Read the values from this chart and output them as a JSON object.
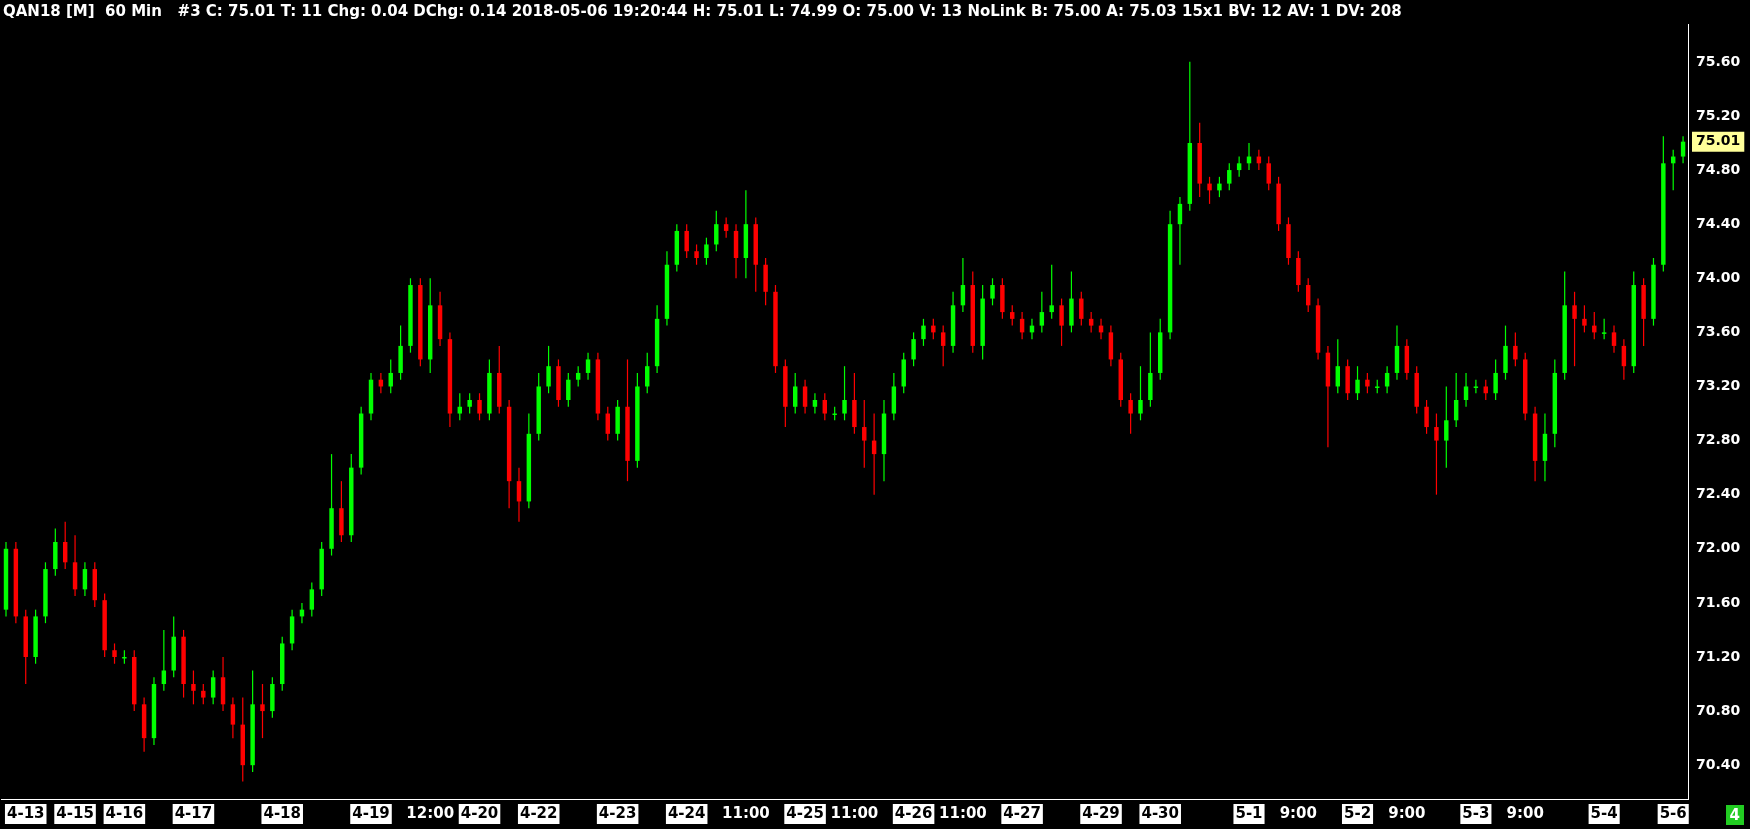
{
  "chart_data": {
    "type": "candlestick",
    "title": "QAN18 [M]  60 Min   #3 C: 75.01 T: 11 Chg: 0.04 DChg: 0.14 2018-05-06 19:20:44 H: 75.01 L: 74.99 O: 75.00 V: 13 NoLink B: 75.00 A: 75.03 15x1 BV: 12 AV: 1 DV: 208",
    "categories": [
      null,
      null,
      "4-13",
      null,
      null,
      null,
      null,
      "4-15",
      null,
      null,
      null,
      null,
      "4-16",
      null,
      null,
      null,
      null,
      null,
      null,
      "4-17",
      null,
      null,
      null,
      null,
      null,
      null,
      null,
      null,
      "4-18",
      null,
      null,
      null,
      null,
      null,
      null,
      null,
      null,
      "4-19",
      null,
      null,
      null,
      null,
      null,
      "12:00",
      null,
      null,
      null,
      null,
      "4-20",
      null,
      null,
      null,
      null,
      null,
      "4-22",
      null,
      null,
      null,
      null,
      null,
      null,
      null,
      "4-23",
      null,
      null,
      null,
      null,
      null,
      null,
      "4-24",
      null,
      null,
      null,
      null,
      null,
      "11:00",
      null,
      null,
      null,
      null,
      null,
      "4-25",
      null,
      null,
      null,
      null,
      "11:00",
      null,
      null,
      null,
      null,
      null,
      "4-26",
      null,
      null,
      null,
      null,
      "11:00",
      null,
      null,
      null,
      null,
      null,
      "4-27",
      null,
      null,
      null,
      null,
      null,
      null,
      null,
      "4-29",
      null,
      null,
      null,
      null,
      null,
      "4-30",
      null,
      null,
      null,
      null,
      null,
      null,
      null,
      null,
      "5-1",
      null,
      null,
      null,
      null,
      "9:00",
      null,
      null,
      null,
      null,
      null,
      "5-2",
      null,
      null,
      null,
      null,
      "9:00",
      null,
      null,
      null,
      null,
      null,
      null,
      "5-3",
      null,
      null,
      null,
      null,
      "9:00",
      null,
      null,
      null,
      null,
      null,
      null,
      null,
      "5-4",
      null,
      null,
      null,
      null,
      null,
      null,
      "5-6",
      null
    ],
    "ohlc": [
      [
        71.55,
        72.05,
        71.5,
        72.0
      ],
      [
        72.0,
        72.05,
        71.45,
        71.5
      ],
      [
        71.5,
        71.55,
        71.0,
        71.2
      ],
      [
        71.2,
        71.55,
        71.15,
        71.5
      ],
      [
        71.5,
        71.9,
        71.45,
        71.85
      ],
      [
        71.85,
        72.15,
        71.8,
        72.05
      ],
      [
        72.05,
        72.2,
        71.85,
        71.9
      ],
      [
        71.9,
        72.1,
        71.65,
        71.7
      ],
      [
        71.7,
        71.9,
        71.65,
        71.85
      ],
      [
        71.85,
        71.9,
        71.57,
        71.62
      ],
      [
        71.62,
        71.67,
        71.2,
        71.25
      ],
      [
        71.25,
        71.3,
        71.15,
        71.2
      ],
      [
        71.2,
        71.25,
        71.15,
        71.2
      ],
      [
        71.2,
        71.25,
        70.8,
        70.85
      ],
      [
        70.85,
        70.9,
        70.5,
        70.6
      ],
      [
        70.6,
        71.05,
        70.55,
        71.0
      ],
      [
        71.0,
        71.4,
        70.95,
        71.1
      ],
      [
        71.1,
        71.5,
        71.05,
        71.35
      ],
      [
        71.35,
        71.4,
        70.9,
        71.0
      ],
      [
        71.0,
        71.1,
        70.85,
        70.95
      ],
      [
        70.95,
        71.0,
        70.85,
        70.9
      ],
      [
        70.9,
        71.1,
        70.85,
        71.05
      ],
      [
        71.05,
        71.2,
        70.8,
        70.85
      ],
      [
        70.85,
        70.9,
        70.6,
        70.7
      ],
      [
        70.7,
        70.9,
        70.28,
        70.4
      ],
      [
        70.4,
        71.1,
        70.35,
        70.85
      ],
      [
        70.85,
        71.0,
        70.6,
        70.8
      ],
      [
        70.8,
        71.05,
        70.75,
        71.0
      ],
      [
        71.0,
        71.35,
        70.95,
        71.3
      ],
      [
        71.3,
        71.55,
        71.25,
        71.5
      ],
      [
        71.5,
        71.6,
        71.45,
        71.55
      ],
      [
        71.55,
        71.75,
        71.5,
        71.7
      ],
      [
        71.7,
        72.05,
        71.65,
        72.0
      ],
      [
        72.0,
        72.7,
        71.95,
        72.3
      ],
      [
        72.3,
        72.5,
        72.05,
        72.1
      ],
      [
        72.1,
        72.7,
        72.05,
        72.6
      ],
      [
        72.6,
        73.05,
        72.55,
        73.0
      ],
      [
        73.0,
        73.3,
        72.95,
        73.25
      ],
      [
        73.25,
        73.3,
        73.15,
        73.2
      ],
      [
        73.2,
        73.4,
        73.15,
        73.3
      ],
      [
        73.3,
        73.65,
        73.25,
        73.5
      ],
      [
        73.5,
        74.0,
        73.45,
        73.95
      ],
      [
        73.95,
        74.0,
        73.35,
        73.4
      ],
      [
        73.4,
        74.0,
        73.3,
        73.8
      ],
      [
        73.8,
        73.9,
        73.5,
        73.55
      ],
      [
        73.55,
        73.6,
        72.9,
        73.0
      ],
      [
        73.0,
        73.15,
        72.95,
        73.05
      ],
      [
        73.05,
        73.15,
        73.0,
        73.1
      ],
      [
        73.1,
        73.15,
        72.95,
        73.0
      ],
      [
        73.0,
        73.4,
        72.95,
        73.3
      ],
      [
        73.3,
        73.5,
        73.0,
        73.05
      ],
      [
        73.05,
        73.1,
        72.3,
        72.5
      ],
      [
        72.5,
        72.6,
        72.2,
        72.35
      ],
      [
        72.35,
        73.0,
        72.3,
        72.85
      ],
      [
        72.85,
        73.3,
        72.8,
        73.2
      ],
      [
        73.2,
        73.5,
        73.15,
        73.35
      ],
      [
        73.35,
        73.4,
        73.05,
        73.1
      ],
      [
        73.1,
        73.3,
        73.05,
        73.25
      ],
      [
        73.25,
        73.35,
        73.2,
        73.3
      ],
      [
        73.3,
        73.45,
        73.25,
        73.4
      ],
      [
        73.4,
        73.45,
        72.95,
        73.0
      ],
      [
        73.0,
        73.05,
        72.8,
        72.85
      ],
      [
        72.85,
        73.1,
        72.8,
        73.05
      ],
      [
        73.05,
        73.4,
        72.5,
        72.65
      ],
      [
        72.65,
        73.3,
        72.6,
        73.2
      ],
      [
        73.2,
        73.45,
        73.15,
        73.35
      ],
      [
        73.35,
        73.8,
        73.3,
        73.7
      ],
      [
        73.7,
        74.2,
        73.65,
        74.1
      ],
      [
        74.1,
        74.4,
        74.05,
        74.35
      ],
      [
        74.35,
        74.4,
        74.15,
        74.2
      ],
      [
        74.2,
        74.25,
        74.1,
        74.15
      ],
      [
        74.15,
        74.3,
        74.1,
        74.25
      ],
      [
        74.25,
        74.5,
        74.2,
        74.4
      ],
      [
        74.4,
        74.45,
        74.3,
        74.35
      ],
      [
        74.35,
        74.4,
        74.0,
        74.15
      ],
      [
        74.15,
        74.65,
        74.0,
        74.4
      ],
      [
        74.4,
        74.45,
        73.9,
        74.1
      ],
      [
        74.1,
        74.15,
        73.8,
        73.9
      ],
      [
        73.9,
        73.95,
        73.3,
        73.35
      ],
      [
        73.35,
        73.4,
        72.9,
        73.05
      ],
      [
        73.05,
        73.3,
        73.0,
        73.2
      ],
      [
        73.2,
        73.25,
        73.0,
        73.05
      ],
      [
        73.05,
        73.15,
        73.0,
        73.1
      ],
      [
        73.1,
        73.15,
        72.95,
        73.0
      ],
      [
        73.0,
        73.05,
        72.95,
        73.0
      ],
      [
        73.0,
        73.35,
        72.95,
        73.1
      ],
      [
        73.1,
        73.3,
        72.85,
        72.9
      ],
      [
        72.9,
        73.1,
        72.6,
        72.8
      ],
      [
        72.8,
        73.0,
        72.4,
        72.7
      ],
      [
        72.7,
        73.1,
        72.5,
        73.0
      ],
      [
        73.0,
        73.3,
        72.95,
        73.2
      ],
      [
        73.2,
        73.45,
        73.15,
        73.4
      ],
      [
        73.4,
        73.6,
        73.35,
        73.55
      ],
      [
        73.55,
        73.7,
        73.5,
        73.65
      ],
      [
        73.65,
        73.7,
        73.55,
        73.6
      ],
      [
        73.6,
        73.65,
        73.35,
        73.5
      ],
      [
        73.5,
        73.9,
        73.45,
        73.8
      ],
      [
        73.8,
        74.15,
        73.75,
        73.95
      ],
      [
        73.95,
        74.05,
        73.45,
        73.5
      ],
      [
        73.5,
        73.95,
        73.4,
        73.85
      ],
      [
        73.85,
        74.0,
        73.8,
        73.95
      ],
      [
        73.95,
        74.0,
        73.7,
        73.75
      ],
      [
        73.75,
        73.8,
        73.65,
        73.7
      ],
      [
        73.7,
        73.75,
        73.55,
        73.6
      ],
      [
        73.6,
        73.7,
        73.55,
        73.65
      ],
      [
        73.65,
        73.9,
        73.6,
        73.75
      ],
      [
        73.75,
        74.1,
        73.7,
        73.8
      ],
      [
        73.8,
        73.85,
        73.5,
        73.65
      ],
      [
        73.65,
        74.05,
        73.6,
        73.85
      ],
      [
        73.85,
        73.9,
        73.65,
        73.7
      ],
      [
        73.7,
        73.75,
        73.6,
        73.65
      ],
      [
        73.65,
        73.7,
        73.55,
        73.6
      ],
      [
        73.6,
        73.65,
        73.35,
        73.4
      ],
      [
        73.4,
        73.45,
        73.05,
        73.1
      ],
      [
        73.1,
        73.15,
        72.85,
        73.0
      ],
      [
        73.0,
        73.35,
        72.95,
        73.1
      ],
      [
        73.1,
        73.6,
        73.05,
        73.3
      ],
      [
        73.3,
        73.7,
        73.25,
        73.6
      ],
      [
        73.6,
        74.5,
        73.55,
        74.4
      ],
      [
        74.4,
        74.6,
        74.1,
        74.55
      ],
      [
        74.55,
        75.6,
        74.5,
        75.0
      ],
      [
        75.0,
        75.15,
        74.6,
        74.7
      ],
      [
        74.7,
        74.75,
        74.55,
        74.65
      ],
      [
        74.65,
        74.75,
        74.6,
        74.7
      ],
      [
        74.7,
        74.85,
        74.65,
        74.8
      ],
      [
        74.8,
        74.9,
        74.75,
        74.85
      ],
      [
        74.85,
        75.0,
        74.8,
        74.9
      ],
      [
        74.9,
        74.95,
        74.8,
        74.85
      ],
      [
        74.85,
        74.9,
        74.65,
        74.7
      ],
      [
        74.7,
        74.75,
        74.35,
        74.4
      ],
      [
        74.4,
        74.45,
        74.1,
        74.15
      ],
      [
        74.15,
        74.2,
        73.9,
        73.95
      ],
      [
        73.95,
        74.0,
        73.75,
        73.8
      ],
      [
        73.8,
        73.85,
        73.4,
        73.45
      ],
      [
        73.45,
        73.5,
        72.75,
        73.2
      ],
      [
        73.2,
        73.55,
        73.15,
        73.35
      ],
      [
        73.35,
        73.4,
        73.1,
        73.15
      ],
      [
        73.15,
        73.35,
        73.1,
        73.25
      ],
      [
        73.25,
        73.3,
        73.15,
        73.2
      ],
      [
        73.2,
        73.25,
        73.15,
        73.2
      ],
      [
        73.2,
        73.35,
        73.15,
        73.3
      ],
      [
        73.3,
        73.65,
        73.25,
        73.5
      ],
      [
        73.5,
        73.55,
        73.25,
        73.3
      ],
      [
        73.3,
        73.35,
        73.0,
        73.05
      ],
      [
        73.05,
        73.1,
        72.85,
        72.9
      ],
      [
        72.9,
        73.0,
        72.4,
        72.8
      ],
      [
        72.8,
        73.2,
        72.6,
        72.95
      ],
      [
        72.95,
        73.3,
        72.9,
        73.1
      ],
      [
        73.1,
        73.3,
        73.05,
        73.2
      ],
      [
        73.2,
        73.25,
        73.15,
        73.2
      ],
      [
        73.2,
        73.25,
        73.1,
        73.15
      ],
      [
        73.15,
        73.4,
        73.1,
        73.3
      ],
      [
        73.3,
        73.65,
        73.25,
        73.5
      ],
      [
        73.5,
        73.6,
        73.35,
        73.4
      ],
      [
        73.4,
        73.45,
        72.95,
        73.0
      ],
      [
        73.0,
        73.05,
        72.5,
        72.65
      ],
      [
        72.65,
        73.0,
        72.5,
        72.85
      ],
      [
        72.85,
        73.4,
        72.75,
        73.3
      ],
      [
        73.3,
        74.05,
        73.25,
        73.8
      ],
      [
        73.8,
        73.9,
        73.35,
        73.7
      ],
      [
        73.7,
        73.8,
        73.6,
        73.65
      ],
      [
        73.65,
        73.75,
        73.55,
        73.6
      ],
      [
        73.6,
        73.7,
        73.55,
        73.6
      ],
      [
        73.6,
        73.65,
        73.45,
        73.5
      ],
      [
        73.5,
        73.55,
        73.25,
        73.35
      ],
      [
        73.35,
        74.05,
        73.3,
        73.95
      ],
      [
        73.95,
        74.0,
        73.5,
        73.7
      ],
      [
        73.7,
        74.15,
        73.65,
        74.1
      ],
      [
        74.1,
        75.05,
        74.05,
        74.85
      ],
      [
        74.85,
        74.95,
        74.65,
        74.9
      ],
      [
        74.9,
        75.05,
        74.85,
        75.01
      ]
    ],
    "colors": [
      "#00ff00",
      "#ff0000",
      "#ff0000",
      "#00ff00",
      "#00ff00",
      "#00ff00",
      "#ff0000",
      "#ff0000",
      "#00ff00",
      "#ff0000",
      "#ff0000",
      "#ff0000",
      "#00ff00",
      "#ff0000",
      "#ff0000",
      "#00ff00",
      "#00ff00",
      "#00ff00",
      "#ff0000",
      "#ff0000",
      "#ff0000",
      "#00ff00",
      "#ff0000",
      "#ff0000",
      "#ff0000",
      "#00ff00",
      "#ff0000",
      "#00ff00",
      "#00ff00",
      "#00ff00",
      "#00ff00",
      "#00ff00",
      "#00ff00",
      "#00ff00",
      "#ff0000",
      "#00ff00",
      "#00ff00",
      "#00ff00",
      "#ff0000",
      "#00ff00",
      "#00ff00",
      "#00ff00",
      "#ff0000",
      "#00ff00",
      "#ff0000",
      "#ff0000",
      "#00ff00",
      "#00ff00",
      "#ff0000",
      "#00ff00",
      "#ff0000",
      "#ff0000",
      "#ff0000",
      "#00ff00",
      "#00ff00",
      "#00ff00",
      "#ff0000",
      "#00ff00",
      "#00ff00",
      "#00ff00",
      "#ff0000",
      "#ff0000",
      "#00ff00",
      "#ff0000",
      "#00ff00",
      "#00ff00",
      "#00ff00",
      "#00ff00",
      "#00ff00",
      "#ff0000",
      "#ff0000",
      "#00ff00",
      "#00ff00",
      "#ff0000",
      "#ff0000",
      "#00ff00",
      "#ff0000",
      "#ff0000",
      "#ff0000",
      "#ff0000",
      "#00ff00",
      "#ff0000",
      "#00ff00",
      "#ff0000",
      "#00ff00",
      "#00ff00",
      "#ff0000",
      "#ff0000",
      "#ff0000",
      "#00ff00",
      "#00ff00",
      "#00ff00",
      "#00ff00",
      "#00ff00",
      "#ff0000",
      "#ff0000",
      "#00ff00",
      "#00ff00",
      "#ff0000",
      "#00ff00",
      "#00ff00",
      "#ff0000",
      "#ff0000",
      "#ff0000",
      "#00ff00",
      "#00ff00",
      "#00ff00",
      "#ff0000",
      "#00ff00",
      "#ff0000",
      "#ff0000",
      "#ff0000",
      "#ff0000",
      "#ff0000",
      "#ff0000",
      "#00ff00",
      "#00ff00",
      "#00ff00",
      "#00ff00",
      "#00ff00",
      "#00ff00",
      "#ff0000",
      "#ff0000",
      "#00ff00",
      "#00ff00",
      "#00ff00",
      "#00ff00",
      "#ff0000",
      "#ff0000",
      "#ff0000",
      "#ff0000",
      "#ff0000",
      "#ff0000",
      "#ff0000",
      "#ff0000",
      "#00ff00",
      "#ff0000",
      "#00ff00",
      "#ff0000",
      "#00ff00",
      "#00ff00",
      "#00ff00",
      "#ff0000",
      "#ff0000",
      "#ff0000",
      "#ff0000",
      "#00ff00",
      "#00ff00",
      "#00ff00",
      "#00ff00",
      "#ff0000",
      "#00ff00",
      "#00ff00",
      "#ff0000",
      "#ff0000",
      "#ff0000",
      "#00ff00",
      "#00ff00",
      "#00ff00",
      "#ff0000",
      "#ff0000",
      "#ff0000",
      "#00ff00",
      "#ff0000",
      "#ff0000",
      "#00ff00",
      "#ff0000",
      "#00ff00",
      "#00ff00",
      "#00ff00",
      "#00ff00"
    ],
    "ylim": [
      70.15,
      75.88
    ],
    "yticks": [
      {
        "value": 70.4,
        "label": "70.40"
      },
      {
        "value": 70.8,
        "label": "70.80"
      },
      {
        "value": 71.2,
        "label": "71.20"
      },
      {
        "value": 71.6,
        "label": "71.60"
      },
      {
        "value": 72.0,
        "label": "72.00"
      },
      {
        "value": 72.4,
        "label": "72.40"
      },
      {
        "value": 72.8,
        "label": "72.80"
      },
      {
        "value": 73.2,
        "label": "73.20"
      },
      {
        "value": 73.6,
        "label": "73.60"
      },
      {
        "value": 74.0,
        "label": "74.00"
      },
      {
        "value": 74.4,
        "label": "74.40"
      },
      {
        "value": 74.8,
        "label": "74.80"
      },
      {
        "value": 75.2,
        "label": "75.20"
      },
      {
        "value": 75.6,
        "label": "75.60"
      }
    ],
    "annotations": [
      "75.01",
      "4"
    ],
    "grid": false,
    "legend": false
  }
}
